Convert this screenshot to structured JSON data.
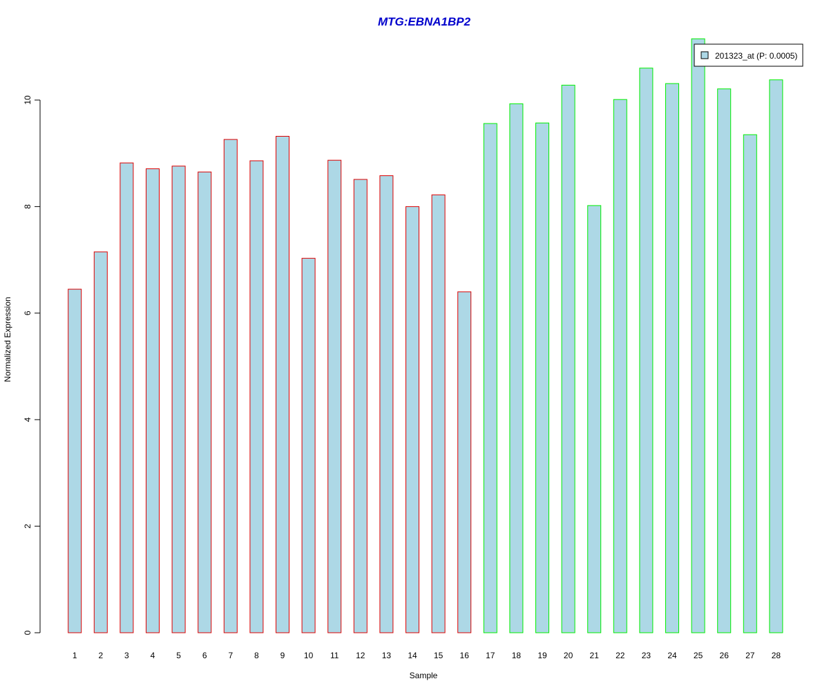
{
  "chart_data": {
    "type": "bar",
    "title": "MTG:EBNA1BP2",
    "xlabel": "Sample",
    "ylabel": "Normalized Expression",
    "ylim": [
      0,
      11.1
    ],
    "yticks": [
      0,
      2,
      4,
      6,
      8,
      10
    ],
    "grid": false,
    "legend_position": "top-right",
    "categories": [
      "1",
      "2",
      "3",
      "4",
      "5",
      "6",
      "7",
      "8",
      "9",
      "10",
      "11",
      "12",
      "13",
      "14",
      "15",
      "16",
      "17",
      "18",
      "19",
      "20",
      "21",
      "22",
      "23",
      "24",
      "25",
      "26",
      "27",
      "28"
    ],
    "series": [
      {
        "name": "201323_at (P: 0.0005)",
        "values": [
          6.45,
          7.15,
          8.82,
          8.71,
          8.76,
          8.65,
          9.26,
          8.86,
          9.32,
          7.03,
          8.87,
          8.51,
          8.58,
          8.0,
          8.22,
          6.4,
          9.56,
          9.93,
          9.57,
          10.28,
          8.02,
          10.01,
          10.6,
          10.31,
          11.15,
          10.21,
          9.35,
          10.38
        ],
        "fill": "#add8e6",
        "group_colors": [
          "#dd0000",
          "#dd0000",
          "#dd0000",
          "#dd0000",
          "#dd0000",
          "#dd0000",
          "#dd0000",
          "#dd0000",
          "#dd0000",
          "#dd0000",
          "#dd0000",
          "#dd0000",
          "#dd0000",
          "#dd0000",
          "#dd0000",
          "#dd0000",
          "#00ee00",
          "#00ee00",
          "#00ee00",
          "#00ee00",
          "#00ee00",
          "#00ee00",
          "#00ee00",
          "#00ee00",
          "#00ee00",
          "#00ee00",
          "#00ee00",
          "#00ee00"
        ]
      }
    ],
    "colors": {
      "title": "#0000cc",
      "axis": "#000000",
      "background": "#ffffff"
    }
  }
}
